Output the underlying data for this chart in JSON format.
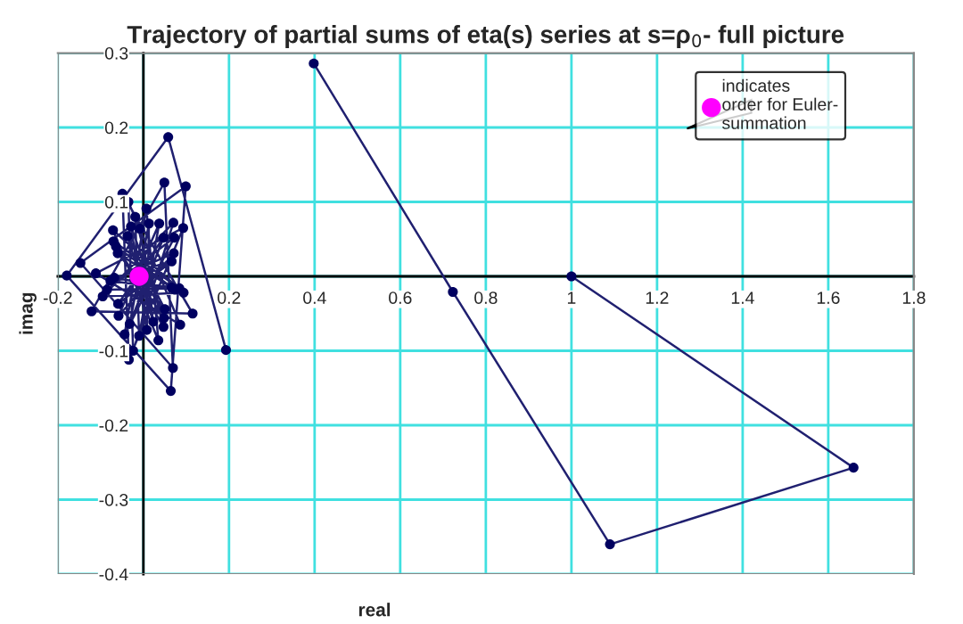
{
  "chart_data": {
    "type": "line",
    "title": "Trajectory of partial sums of eta(s) series at s=ρ$_{0}$- full picture",
    "xlabel": "real",
    "ylabel": "imag",
    "xlim": [
      -0.2,
      1.8
    ],
    "ylim": [
      -0.4,
      0.3
    ],
    "xticks": [
      -0.2,
      {
        "value": 0,
        "label": null
      },
      0.2,
      0.4,
      0.6,
      0.8,
      1,
      1.2,
      1.4,
      1.6,
      1.8
    ],
    "yticks": [
      -0.4,
      -0.3,
      -0.2,
      -0.1,
      {
        "value": 0,
        "label": null
      },
      0.1,
      0.2,
      0.3
    ],
    "grid": true,
    "legend": "top right",
    "marker": "circle",
    "line_style": "solid",
    "series": [
      {
        "color": "#202070",
        "x": [
          1.0,
          1.659,
          1.09,
          0.723,
          0.398,
          null,
          0.193,
          0.058,
          -0.179,
          0.064,
          0.099,
          -0.147,
          0.069,
          0.049,
          -0.121,
          0.115,
          -0.049,
          -0.034,
          0.093,
          -0.111,
          0.086,
          -0.035,
          -0.024,
          0.07,
          -0.095,
          0.094,
          -0.071,
          0.035,
          0.007,
          -0.044,
          0.072,
          -0.085,
          0.084,
          -0.07,
          0.047,
          -0.019,
          -0.01,
          0.037,
          -0.058,
          0.071,
          -0.077,
          0.074,
          -0.064,
          0.048,
          -0.029,
          0.008,
          0.013,
          -0.032,
          0.047,
          -0.059,
          0.066,
          -0.068,
          0.066,
          -0.06,
          0.05,
          -0.037,
          0.023,
          -0.008
        ],
        "values": [
          0.0,
          -0.257,
          -0.36,
          -0.021,
          0.286,
          null,
          -0.099,
          0.187,
          0.001,
          -0.154,
          0.121,
          0.018,
          -0.123,
          0.126,
          -0.047,
          -0.05,
          0.111,
          -0.112,
          0.065,
          0.004,
          -0.065,
          0.1,
          -0.1,
          0.072,
          -0.027,
          -0.022,
          0.062,
          -0.086,
          0.091,
          -0.078,
          0.052,
          -0.018,
          -0.016,
          0.047,
          -0.068,
          0.08,
          -0.08,
          0.071,
          -0.053,
          0.031,
          -0.006,
          -0.018,
          0.04,
          -0.056,
          0.067,
          -0.072,
          0.071,
          -0.064,
          0.052,
          -0.037,
          0.02,
          -0.002,
          -0.015,
          0.031,
          -0.044,
          0.054,
          -0.061,
          0.064
        ]
      },
      {
        "type": "scatter",
        "name": "indicates\norder for Euler-\nsummation",
        "color": "#ff00ff",
        "x": [
          -0.01
        ],
        "values": [
          0.0
        ]
      }
    ]
  }
}
